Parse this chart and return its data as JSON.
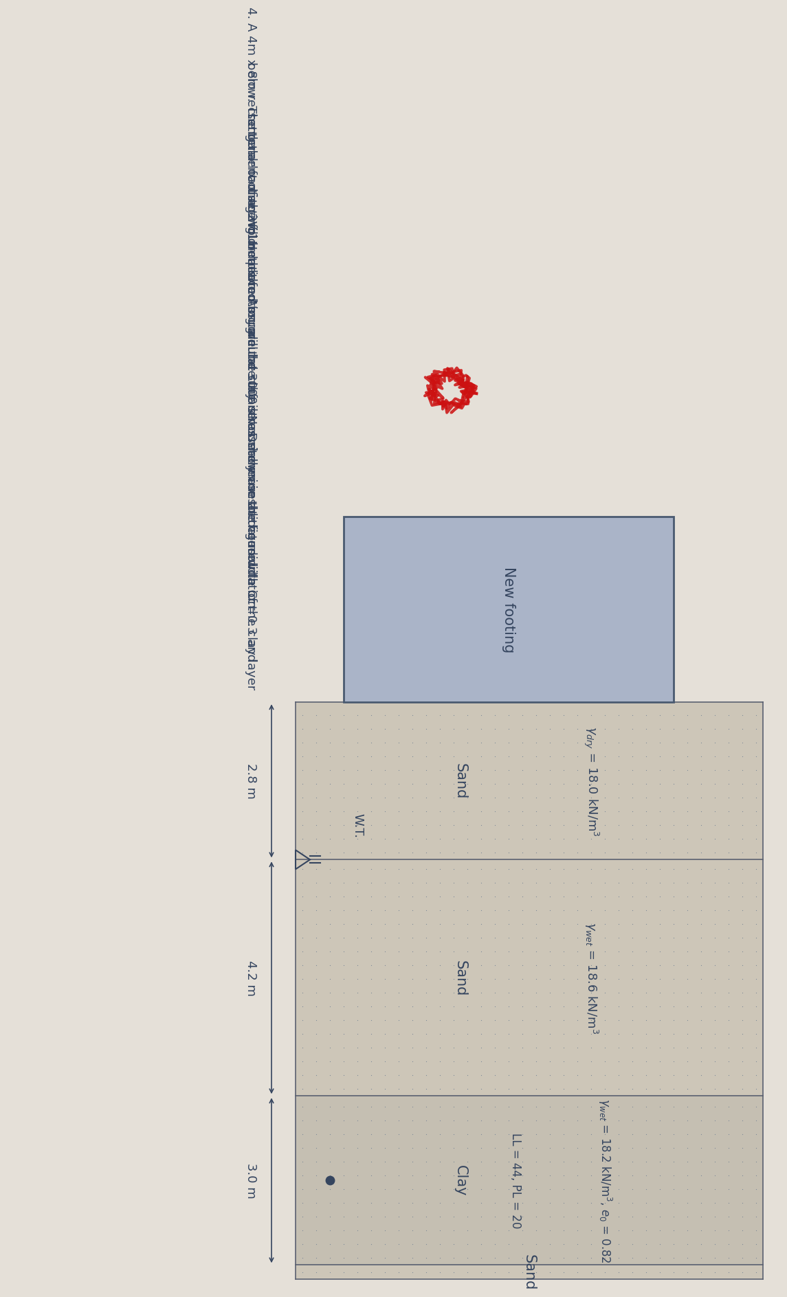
{
  "question_text_lines": [
    "4. A 4m x 8m rectangular footing will be placed on ground surface as shown in the figure",
    "below. The total load acting on the footing will be 3000 kN. Determine the consolidation",
    "settlement of the foundation. Assume the clay is normally consolidated with Cc=0.3 and",
    "use 2V:1H method to calculate the stress increase at the middle of the clay layer"
  ],
  "footing_label": "New footing",
  "wt_label": "W.T.",
  "sand1_label": "Sand",
  "sand1_gamma": "$\\gamma_{dry}$ = 18.0 kN/m$^3$",
  "sand2_label": "Sand",
  "sand2_gamma": "$\\gamma_{wet}$ = 18.6 kN/m$^3$",
  "clay_label": "Clay",
  "clay_props1": "$\\gamma_{wet}$ = 18.2 kN/m$^3$, $e_0$ = 0.82",
  "clay_props2": "LL = 44, PL = 20",
  "sand3_label": "Sand",
  "depth1": "2.8 m",
  "depth2": "4.2 m",
  "depth3": "3.0 m",
  "bg_color": "#e5e0d8",
  "footing_face_color": "#aab4c8",
  "footing_edge_color": "#4a5a70",
  "layer_edge_color": "#5a6070",
  "dot_color": "#7a8898",
  "sand_bg": "#cdc6b8",
  "clay_bg": "#c5bfb2",
  "text_color": "#35455f"
}
